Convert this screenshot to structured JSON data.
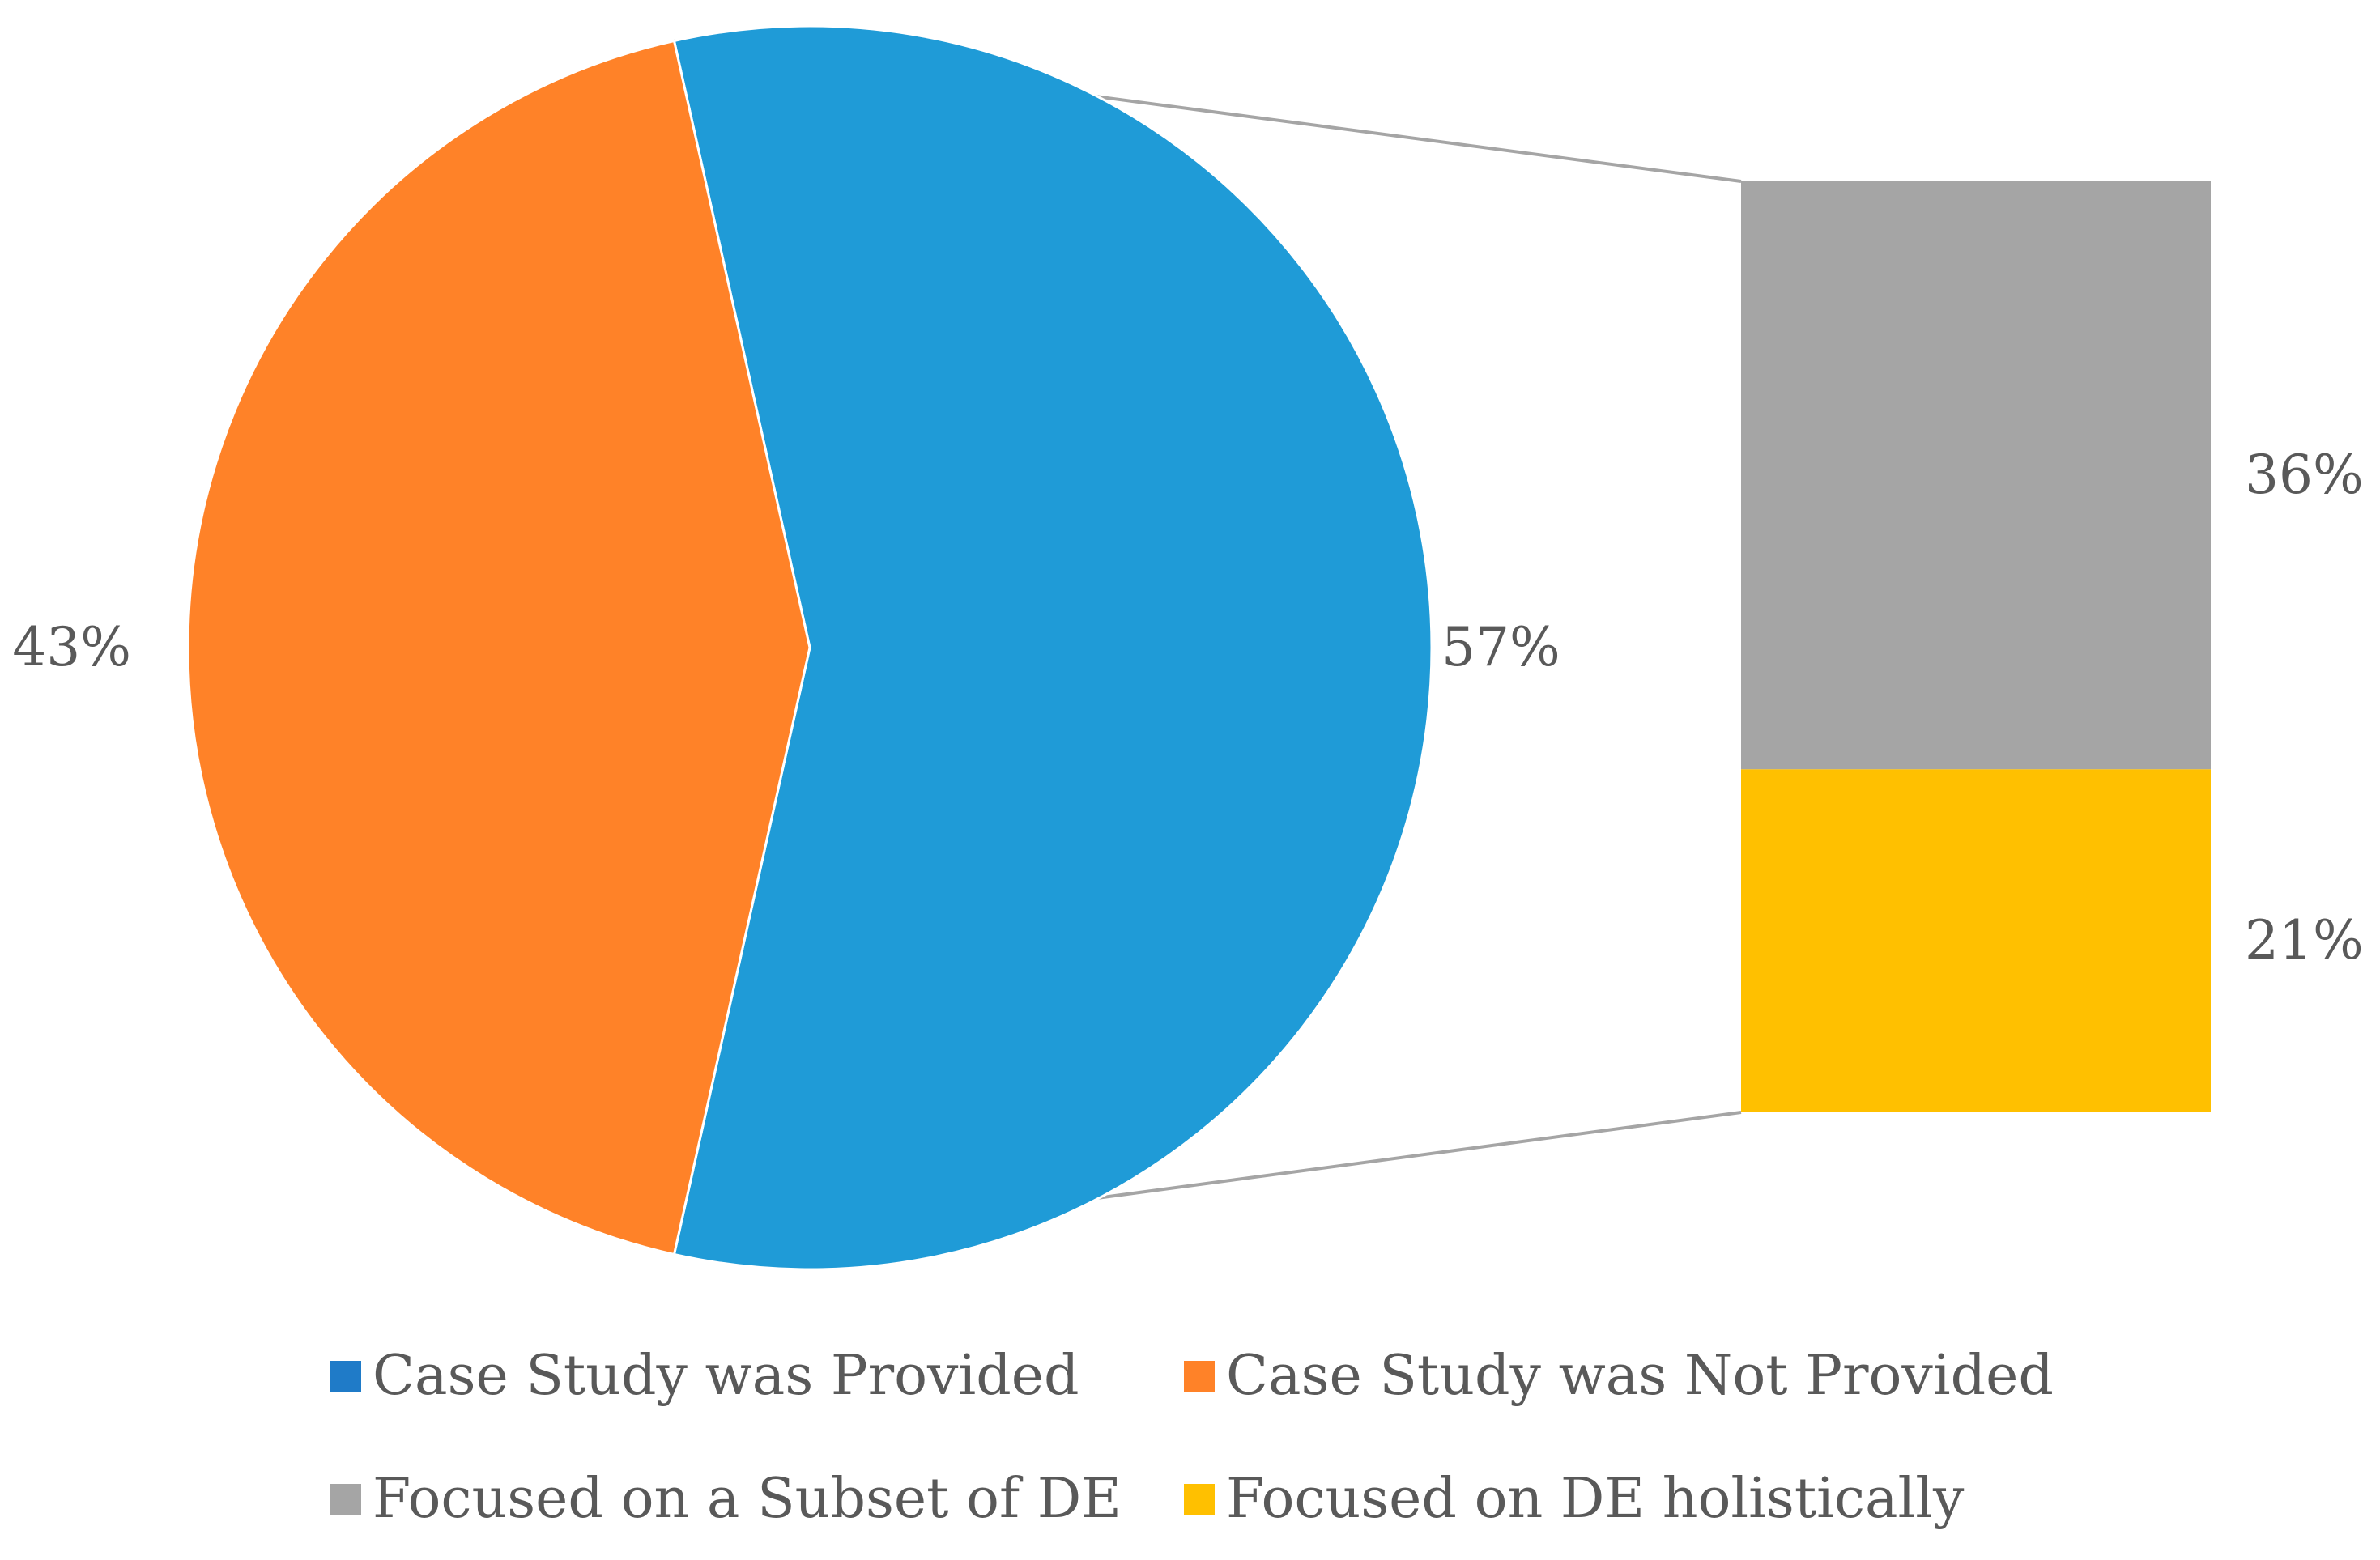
{
  "chart_data": {
    "type": "pie",
    "subtype": "bar-of-pie",
    "pie": {
      "slices": [
        {
          "name": "Case Study was Provided",
          "value": 57,
          "label": "57%",
          "color": "#1F9BD7"
        },
        {
          "name": "Case Study was Not Provided",
          "value": 43,
          "label": "43%",
          "color": "#FF8228"
        }
      ]
    },
    "breakdown": {
      "of": "Case Study was Provided",
      "segments": [
        {
          "name": "Focused on a Subset of DE",
          "value": 36,
          "label": "36%",
          "color": "#A5A5A5"
        },
        {
          "name": "Focused on DE holistically",
          "value": 21,
          "label": "21%",
          "color": "#FFC000"
        }
      ]
    },
    "legend": [
      {
        "name": "Case Study was Provided",
        "color": "#1F7BC8"
      },
      {
        "name": "Case Study was Not Provided",
        "color": "#FF8228"
      },
      {
        "name": "Focused on a Subset of DE",
        "color": "#A5A5A5"
      },
      {
        "name": "Focused on DE holistically",
        "color": "#FFC000"
      }
    ],
    "legend_position": "bottom",
    "connector_color": "#A5A5A5"
  }
}
